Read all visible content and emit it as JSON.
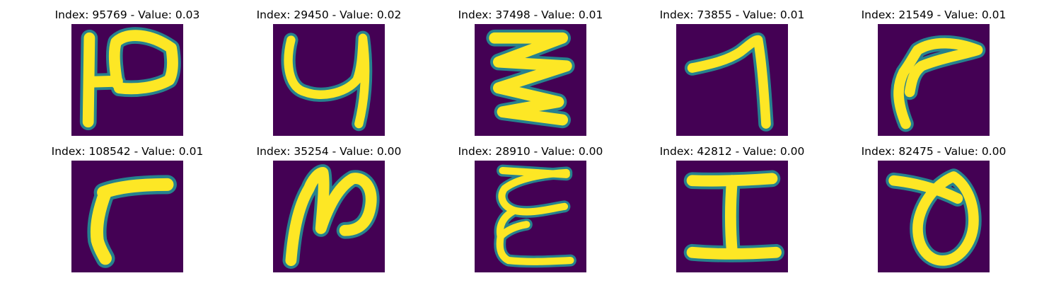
{
  "figure": {
    "background_color": "#ffffff",
    "image_background_color": "#440154",
    "stroke_colors": [
      "#fde725",
      "#b5de2b",
      "#6ece58",
      "#35b779",
      "#1f9e89",
      "#26828e"
    ]
  },
  "panels": [
    {
      "title": "Index: 95769 - Value: 0.03",
      "glyph": "handwritten-character-h-like"
    },
    {
      "title": "Index: 29450 - Value: 0.02",
      "glyph": "handwritten-character-y-like"
    },
    {
      "title": "Index: 37498 - Value: 0.01",
      "glyph": "handwritten-character-zigzag"
    },
    {
      "title": "Index: 73855 - Value: 0.01",
      "glyph": "handwritten-character-seven-like"
    },
    {
      "title": "Index: 21549 - Value: 0.01",
      "glyph": "handwritten-character-curved-hook"
    },
    {
      "title": "Index: 108542 - Value: 0.01",
      "glyph": "handwritten-character-r-like"
    },
    {
      "title": "Index: 35254 - Value: 0.00",
      "glyph": "handwritten-character-n-like"
    },
    {
      "title": "Index: 28910 - Value: 0.00",
      "glyph": "handwritten-character-epsilon-like"
    },
    {
      "title": "Index: 42812 - Value: 0.00",
      "glyph": "handwritten-character-i-serif"
    },
    {
      "title": "Index: 82475 - Value: 0.00",
      "glyph": "handwritten-character-theta-like"
    }
  ]
}
